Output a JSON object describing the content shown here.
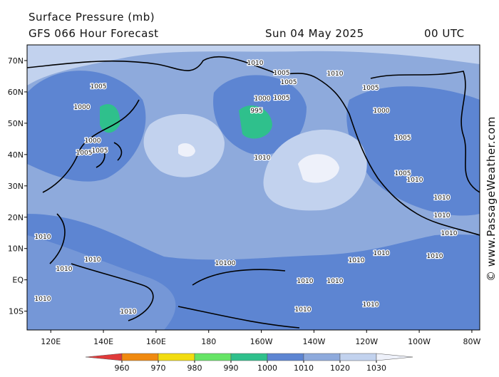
{
  "header": {
    "title": "Surface Pressure (mb)",
    "forecast": "GFS 066 Hour Forecast",
    "date": "Sun 04 May 2025",
    "time": "00 UTC"
  },
  "watermark": "© www.PassageWeather.com",
  "map": {
    "xlim": [
      111,
      283
    ],
    "ylim": [
      -16,
      75
    ],
    "xticks": [
      {
        "value": 120,
        "label": "120E"
      },
      {
        "value": 140,
        "label": "140E"
      },
      {
        "value": 160,
        "label": "160E"
      },
      {
        "value": 180,
        "label": "180"
      },
      {
        "value": 200,
        "label": "160W"
      },
      {
        "value": 220,
        "label": "140W"
      },
      {
        "value": 240,
        "label": "120W"
      },
      {
        "value": 260,
        "label": "100W"
      },
      {
        "value": 280,
        "label": "80W"
      }
    ],
    "yticks": [
      {
        "value": 70,
        "label": "70N"
      },
      {
        "value": 60,
        "label": "60N"
      },
      {
        "value": 50,
        "label": "50N"
      },
      {
        "value": 40,
        "label": "40N"
      },
      {
        "value": 30,
        "label": "30N"
      },
      {
        "value": 20,
        "label": "20N"
      },
      {
        "value": 10,
        "label": "10N"
      },
      {
        "value": 0,
        "label": "EQ"
      },
      {
        "value": -10,
        "label": "10S"
      }
    ],
    "contour_labels": [
      "1005",
      "1000",
      "1000",
      "1005",
      "1005",
      "1010",
      "1005",
      "1005",
      "995",
      "1000",
      "1005",
      "1010",
      "1010",
      "1005",
      "1000",
      "1005",
      "1005",
      "1010",
      "1010",
      "1010",
      "1010",
      "1010",
      "1010",
      "1010",
      "10100",
      "1010",
      "1010",
      "1010",
      "1010",
      "1010",
      "1010",
      "1010",
      "1010",
      "1010"
    ]
  },
  "colorbar": {
    "levels": [
      960,
      970,
      980,
      990,
      1000,
      1010,
      1020,
      1030
    ],
    "colors": [
      "#e03a3a",
      "#f08a10",
      "#f2dc10",
      "#66e466",
      "#2fc08c",
      "#5d85d2",
      "#8eaadc",
      "#c2d2ee",
      "#eef1fa"
    ]
  }
}
